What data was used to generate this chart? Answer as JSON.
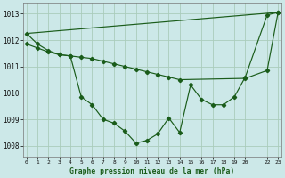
{
  "background_color": "#cce8e8",
  "grid_color": "#aaccbb",
  "line_color": "#1a5c1a",
  "title": "Graphe pression niveau de la mer (hPa)",
  "xlim": [
    -0.3,
    23.3
  ],
  "ylim": [
    1007.6,
    1013.4
  ],
  "yticks": [
    1008,
    1009,
    1010,
    1011,
    1012,
    1013
  ],
  "line1_x": [
    0,
    23
  ],
  "line1_y": [
    1012.25,
    1013.05
  ],
  "line2_x": [
    0,
    1,
    2,
    3,
    4,
    5,
    6,
    7,
    8,
    9,
    10,
    11,
    12,
    13,
    14,
    20,
    22,
    23
  ],
  "line2_y": [
    1011.85,
    1011.7,
    1011.55,
    1011.45,
    1011.4,
    1011.35,
    1011.3,
    1011.2,
    1011.1,
    1011.0,
    1010.9,
    1010.8,
    1010.7,
    1010.6,
    1010.5,
    1010.55,
    1010.85,
    1013.05
  ],
  "line3_x": [
    0,
    1,
    2,
    3,
    4,
    5,
    6,
    7,
    8,
    9,
    10,
    11,
    12,
    13,
    14,
    15,
    16,
    17,
    18,
    19,
    20,
    22,
    23
  ],
  "line3_y": [
    1012.25,
    1011.85,
    1011.6,
    1011.45,
    1011.4,
    1009.85,
    1009.55,
    1009.0,
    1008.85,
    1008.55,
    1008.1,
    1008.2,
    1008.45,
    1009.05,
    1008.5,
    1010.3,
    1009.75,
    1009.55,
    1009.55,
    1009.85,
    1010.6,
    1012.95,
    1013.05
  ],
  "figwidth": 3.2,
  "figheight": 2.0,
  "dpi": 100
}
